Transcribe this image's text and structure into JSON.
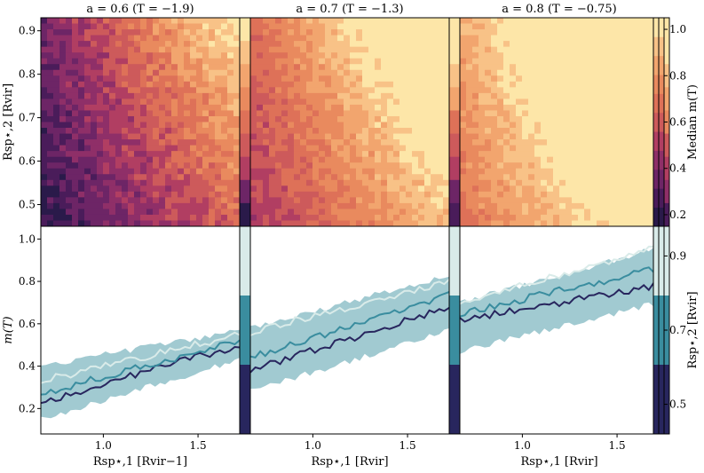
{
  "chart_data": {
    "type": "heatmap+line",
    "panels": [
      {
        "title": "a = 0.6 (T = −1.9)",
        "a": 0.6,
        "T": -1.9,
        "top_base": 0.22,
        "top_gain": 0.08
      },
      {
        "title": "a = 0.7 (T = −1.3)",
        "a": 0.7,
        "T": -1.3,
        "top_base": 0.5,
        "top_gain": 0.06
      },
      {
        "title": "a = 0.8 (T = −0.75)",
        "a": 0.8,
        "T": -0.75,
        "top_base": 0.7,
        "top_gain": 0.05
      }
    ],
    "top": {
      "ylabel": "Rsp⋆,2 [Rvir]",
      "yticks": [
        "0.5",
        "0.6",
        "0.7",
        "0.8",
        "0.9"
      ],
      "yrange": [
        0.45,
        0.93
      ],
      "colorbar_label": "Median m(T)",
      "colorbar_ticks": [
        "0.2",
        "0.4",
        "0.6",
        "0.8",
        "1.0"
      ],
      "colorbar_range": [
        0.15,
        1.05
      ],
      "colormap": [
        "#2a1a4a",
        "#4a1c5a",
        "#6d2566",
        "#8f2f68",
        "#b13e62",
        "#cd5a5b",
        "#de7158",
        "#e98a5e",
        "#f2a56e",
        "#f8c287",
        "#fde6a8"
      ]
    },
    "bottom": {
      "ylabel": "m(T)",
      "yticks": [
        "0.2",
        "0.4",
        "0.6",
        "0.8",
        "1.0"
      ],
      "yrange": [
        0.08,
        1.06
      ],
      "colorbar_label": "Rsp⋆,2 [Rvir]",
      "colorbar_ticks": [
        "0.5",
        "0.7",
        "0.9"
      ],
      "colorbar_range": [
        0.42,
        0.98
      ],
      "band_color": "#9cc7cf",
      "series": [
        {
          "line_color": "#28265e",
          "left": [
            0.23,
            0.38,
            0.62
          ],
          "right": [
            0.5,
            0.68,
            0.78
          ]
        },
        {
          "line_color": "#3a8d9f",
          "left": [
            0.27,
            0.44,
            0.65
          ],
          "right": [
            0.52,
            0.74,
            0.86
          ]
        },
        {
          "line_color": "#d9ebe9",
          "left": [
            0.33,
            0.56,
            0.7
          ],
          "right": [
            0.55,
            0.8,
            0.96
          ]
        }
      ],
      "band_lower_left": [
        0.15,
        0.28,
        0.47
      ],
      "band_lower_right": [
        0.43,
        0.57,
        0.7
      ],
      "band_upper_left": [
        0.4,
        0.58,
        0.7
      ],
      "band_upper_right": [
        0.57,
        0.83,
        0.96
      ],
      "sidebar_colors": [
        "#28265e",
        "#3a8d9f",
        "#d9ebe9"
      ]
    },
    "x": {
      "xlabels": [
        "Rsp⋆,1 [Rvir−1]",
        "Rsp⋆,1 [Rvir]",
        "Rsp⋆,1 [Rvir]"
      ],
      "xticks": [
        "1.0",
        "1.5"
      ],
      "xrange": [
        0.67,
        1.72
      ],
      "tick_values": [
        1.0,
        1.5
      ]
    }
  }
}
